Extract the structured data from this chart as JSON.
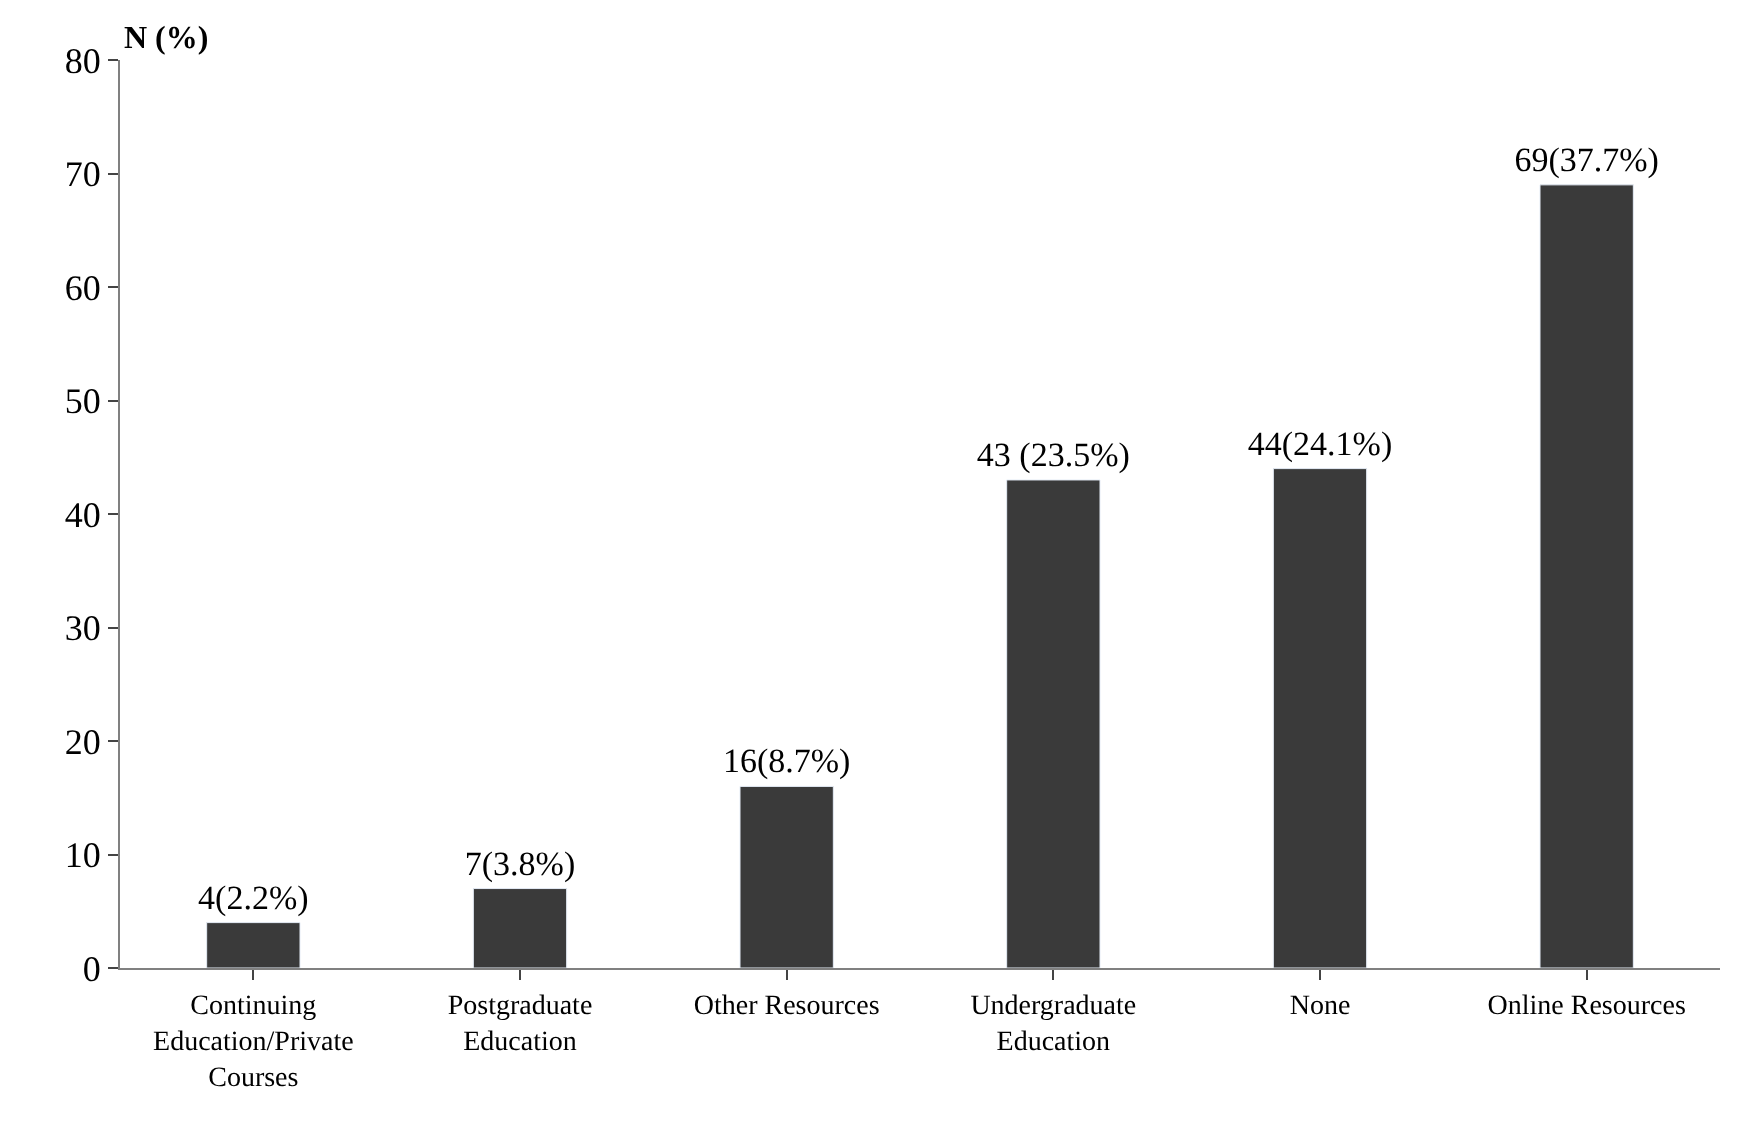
{
  "chart_data": {
    "type": "bar",
    "ylabel": "N (%)",
    "categories": [
      "Continuing Education/Private Courses",
      "Postgraduate Education",
      "Other Resources",
      "Undergraduate Education",
      "None",
      "Online Resources"
    ],
    "values": [
      4,
      7,
      16,
      43,
      44,
      69
    ],
    "value_labels": [
      "4(2.2%)",
      "7(3.8%)",
      "16(8.7%)",
      "43 (23.5%)",
      "44(24.1%)",
      "69(37.7%)"
    ],
    "color": "#3a3a3a",
    "ylim": [
      0,
      80
    ],
    "yticks": [
      0,
      10,
      20,
      30,
      40,
      50,
      60,
      70,
      80
    ],
    "legend": false
  }
}
